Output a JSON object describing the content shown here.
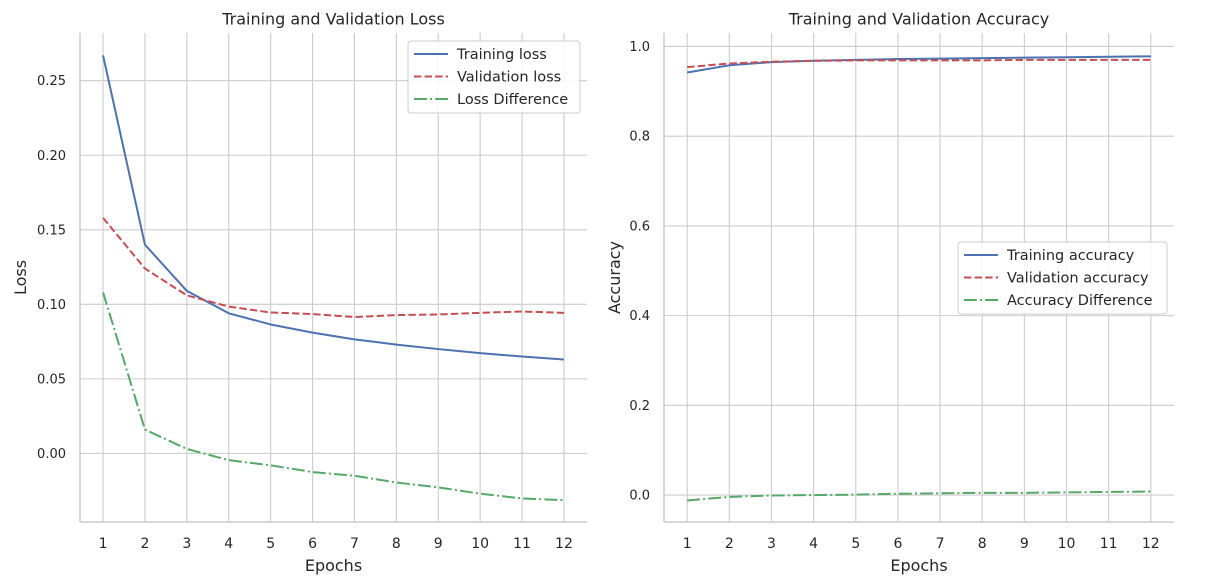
{
  "chart_data": [
    {
      "type": "line",
      "title": "Training and Validation Loss",
      "xlabel": "Epochs",
      "ylabel": "Loss",
      "x": [
        1,
        2,
        3,
        4,
        5,
        6,
        7,
        8,
        9,
        10,
        11,
        12
      ],
      "xticks": [
        1,
        2,
        3,
        4,
        5,
        6,
        7,
        8,
        9,
        10,
        11,
        12
      ],
      "xlim": [
        0.45,
        12.55
      ],
      "yticks": [
        0.0,
        0.05,
        0.1,
        0.15,
        0.2,
        0.25
      ],
      "ytick_labels": [
        "0.00",
        "0.05",
        "0.10",
        "0.15",
        "0.20",
        "0.25"
      ],
      "ylim": [
        -0.046,
        0.282
      ],
      "grid": true,
      "legend_position": "top-right",
      "series": [
        {
          "name": "Training loss",
          "color": "#4c72b0",
          "dash": "solid",
          "values": [
            0.267,
            0.14,
            0.109,
            0.094,
            0.0865,
            0.081,
            0.0765,
            0.073,
            0.07,
            0.0673,
            0.065,
            0.063
          ]
        },
        {
          "name": "Validation loss",
          "color": "#c44e52",
          "dash": "dashed",
          "values": [
            0.158,
            0.124,
            0.106,
            0.0985,
            0.0945,
            0.0935,
            0.0915,
            0.0928,
            0.0932,
            0.0943,
            0.0952,
            0.0943
          ]
        },
        {
          "name": "Loss Difference",
          "color": "#55a868",
          "dash": "dashdot",
          "values": [
            0.108,
            0.016,
            0.003,
            -0.0045,
            -0.008,
            -0.0125,
            -0.015,
            -0.0195,
            -0.0228,
            -0.027,
            -0.0302,
            -0.0313
          ]
        }
      ]
    },
    {
      "type": "line",
      "title": "Training and Validation Accuracy",
      "xlabel": "Epochs",
      "ylabel": "Accuracy",
      "x": [
        1,
        2,
        3,
        4,
        5,
        6,
        7,
        8,
        9,
        10,
        11,
        12
      ],
      "xticks": [
        1,
        2,
        3,
        4,
        5,
        6,
        7,
        8,
        9,
        10,
        11,
        12
      ],
      "xlim": [
        0.45,
        12.55
      ],
      "yticks": [
        0.0,
        0.2,
        0.4,
        0.6,
        0.8,
        1.0
      ],
      "ytick_labels": [
        "0.0",
        "0.2",
        "0.4",
        "0.6",
        "0.8",
        "1.0"
      ],
      "ylim": [
        -0.06,
        1.03
      ],
      "grid": true,
      "legend_position": "center-right",
      "series": [
        {
          "name": "Training accuracy",
          "color": "#4c72b0",
          "dash": "solid",
          "values": [
            0.942,
            0.958,
            0.965,
            0.968,
            0.97,
            0.972,
            0.973,
            0.974,
            0.975,
            0.976,
            0.977,
            0.978
          ]
        },
        {
          "name": "Validation accuracy",
          "color": "#c44e52",
          "dash": "dashed",
          "values": [
            0.954,
            0.962,
            0.966,
            0.968,
            0.969,
            0.969,
            0.969,
            0.969,
            0.97,
            0.97,
            0.97,
            0.97
          ]
        },
        {
          "name": "Accuracy Difference",
          "color": "#55a868",
          "dash": "dashdot",
          "values": [
            -0.012,
            -0.004,
            -0.001,
            0.0,
            0.001,
            0.003,
            0.004,
            0.005,
            0.005,
            0.006,
            0.007,
            0.008
          ]
        }
      ]
    }
  ]
}
